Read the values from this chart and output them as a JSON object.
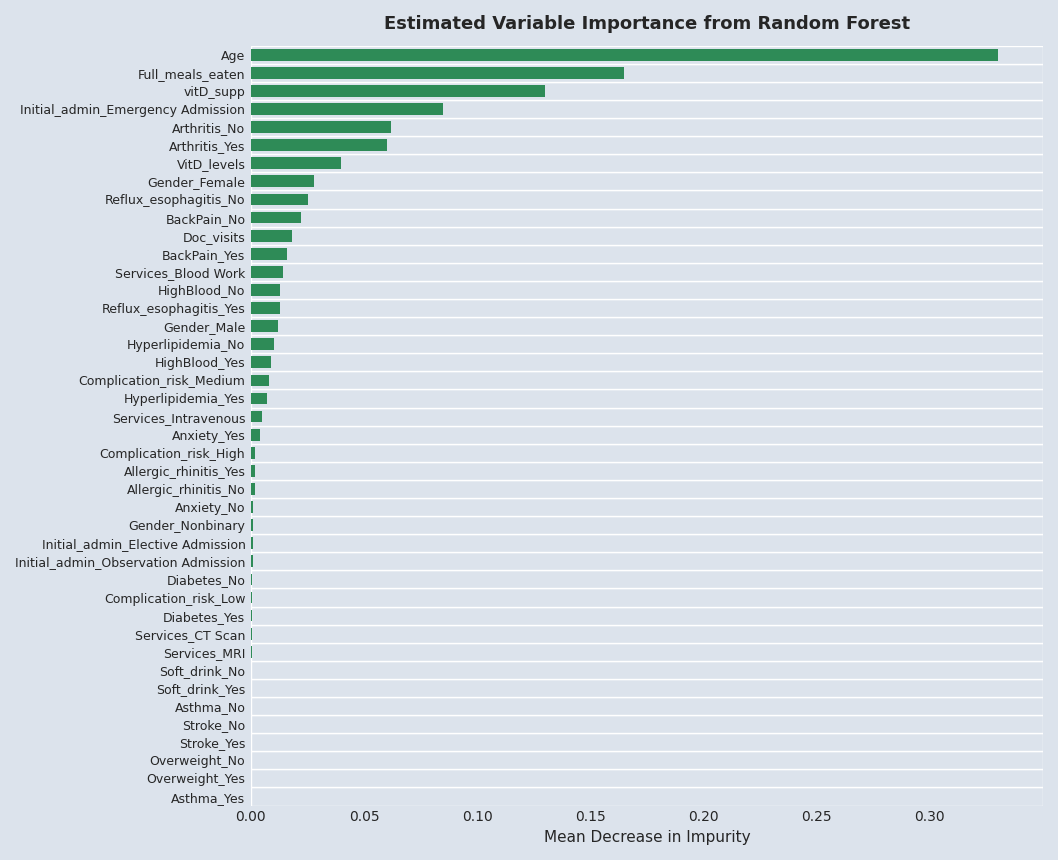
{
  "title": "Estimated Variable Importance from Random Forest",
  "xlabel": "Mean Decrease in Impurity",
  "categories": [
    "Age",
    "Full_meals_eaten",
    "vitD_supp",
    "Initial_admin_Emergency Admission",
    "Arthritis_No",
    "Arthritis_Yes",
    "VitD_levels",
    "Gender_Female",
    "Reflux_esophagitis_No",
    "BackPain_No",
    "Doc_visits",
    "BackPain_Yes",
    "Services_Blood Work",
    "HighBlood_No",
    "Reflux_esophagitis_Yes",
    "Gender_Male",
    "Hyperlipidemia_No",
    "HighBlood_Yes",
    "Complication_risk_Medium",
    "Hyperlipidemia_Yes",
    "Services_Intravenous",
    "Anxiety_Yes",
    "Complication_risk_High",
    "Allergic_rhinitis_Yes",
    "Allergic_rhinitis_No",
    "Anxiety_No",
    "Gender_Nonbinary",
    "Initial_admin_Elective Admission",
    "Initial_admin_Observation Admission",
    "Diabetes_No",
    "Complication_risk_Low",
    "Diabetes_Yes",
    "Services_CT Scan",
    "Services_MRI",
    "Soft_drink_No",
    "Soft_drink_Yes",
    "Asthma_No",
    "Stroke_No",
    "Stroke_Yes",
    "Overweight_No",
    "Overweight_Yes",
    "Asthma_Yes"
  ],
  "values": [
    0.33,
    0.165,
    0.13,
    0.085,
    0.062,
    0.06,
    0.04,
    0.028,
    0.025,
    0.022,
    0.018,
    0.016,
    0.014,
    0.013,
    0.013,
    0.012,
    0.01,
    0.009,
    0.008,
    0.007,
    0.005,
    0.004,
    0.002,
    0.002,
    0.002,
    0.001,
    0.001,
    0.001,
    0.001,
    0.0005,
    0.0005,
    0.0005,
    0.0003,
    0.0003,
    0.0002,
    0.0002,
    0.0001,
    0.0001,
    0.0001,
    0.0001,
    5e-05,
    5e-05
  ],
  "bar_color": "#2e8b57",
  "background_color": "#dce3ec",
  "grid_color": "#ffffff",
  "xlim": [
    0,
    0.35
  ],
  "xticks": [
    0.0,
    0.05,
    0.1,
    0.15,
    0.2,
    0.25,
    0.3
  ],
  "title_fontsize": 13,
  "label_fontsize": 11,
  "tick_fontsize": 10,
  "ytick_fontsize": 9
}
